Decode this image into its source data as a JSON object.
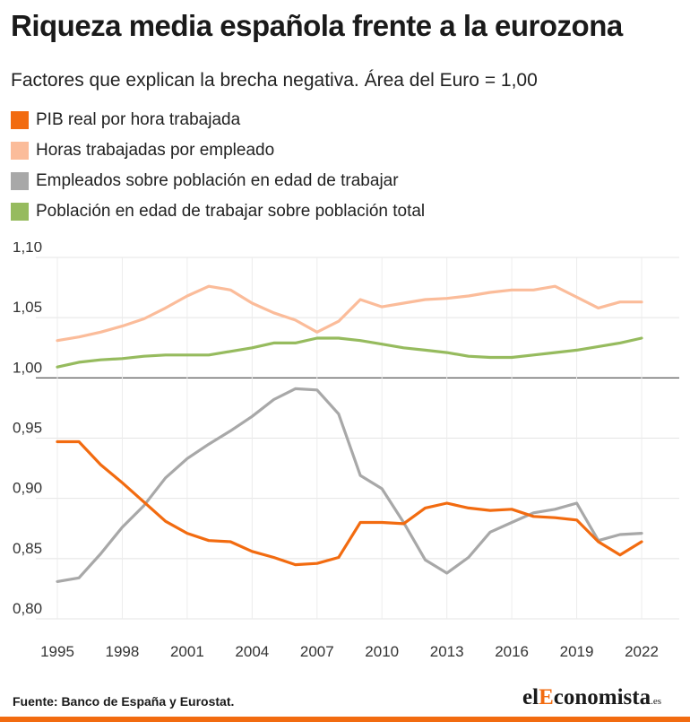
{
  "title": "Riqueza media española frente a la eurozona",
  "subtitle": "Factores que explican la brecha negativa. Área del Euro = 1,00",
  "footer": {
    "source": "Fuente: Banco de España y Eurostat.",
    "brand_pre": "el",
    "brand_accent": "E",
    "brand_mid": "conomista",
    "brand_suffix": ".es"
  },
  "colors": {
    "pib": "#f26b10",
    "horas": "#fbbc9a",
    "empleados": "#a8a8a8",
    "poblacion": "#96bb5e",
    "brand_accent": "#f26b10"
  },
  "chart_data": {
    "type": "line",
    "title": "Riqueza media española frente a la eurozona",
    "subtitle": "Factores que explican la brecha negativa. Área del Euro = 1,00",
    "x": [
      1995,
      1996,
      1997,
      1998,
      1999,
      2000,
      2001,
      2002,
      2003,
      2004,
      2005,
      2006,
      2007,
      2008,
      2009,
      2010,
      2011,
      2012,
      2013,
      2014,
      2015,
      2016,
      2017,
      2018,
      2019,
      2020,
      2021,
      2022
    ],
    "x_ticks": [
      "1995",
      "1998",
      "2001",
      "2004",
      "2007",
      "2010",
      "2013",
      "2016",
      "2019",
      "2022"
    ],
    "y_ticks": [
      "1,10",
      "1,05",
      "1,00",
      "0,95",
      "0,90",
      "0,85",
      "0,80"
    ],
    "ylim": [
      0.8,
      1.1
    ],
    "reference_line": 1.0,
    "grid": true,
    "legend_position": "top",
    "series": [
      {
        "name": "PIB real por hora trabajada",
        "color": "#f26b10",
        "values": [
          0.947,
          0.947,
          0.928,
          0.913,
          0.897,
          0.881,
          0.871,
          0.865,
          0.864,
          0.856,
          0.851,
          0.845,
          0.846,
          0.851,
          0.88,
          0.88,
          0.879,
          0.892,
          0.896,
          0.892,
          0.89,
          0.891,
          0.885,
          0.884,
          0.882,
          0.864,
          0.853,
          0.864
        ]
      },
      {
        "name": "Horas trabajadas por empleado",
        "color": "#fbbc9a",
        "values": [
          1.031,
          1.034,
          1.038,
          1.043,
          1.049,
          1.058,
          1.068,
          1.076,
          1.073,
          1.062,
          1.054,
          1.048,
          1.038,
          1.047,
          1.065,
          1.059,
          1.062,
          1.065,
          1.066,
          1.068,
          1.071,
          1.073,
          1.073,
          1.076,
          1.067,
          1.058,
          1.063,
          1.063
        ]
      },
      {
        "name": "Empleados sobre población en edad de trabajar",
        "color": "#a8a8a8",
        "values": [
          0.831,
          0.834,
          0.854,
          0.876,
          0.894,
          0.917,
          0.933,
          0.945,
          0.956,
          0.968,
          0.982,
          0.991,
          0.99,
          0.97,
          0.919,
          0.908,
          0.88,
          0.849,
          0.838,
          0.851,
          0.872,
          0.88,
          0.888,
          0.891,
          0.896,
          0.865,
          0.87,
          0.871
        ]
      },
      {
        "name": "Población en edad de trabajar sobre población total",
        "color": "#96bb5e",
        "values": [
          1.009,
          1.013,
          1.015,
          1.016,
          1.018,
          1.019,
          1.019,
          1.019,
          1.022,
          1.025,
          1.029,
          1.029,
          1.033,
          1.033,
          1.031,
          1.028,
          1.025,
          1.023,
          1.021,
          1.018,
          1.017,
          1.017,
          1.019,
          1.021,
          1.023,
          1.026,
          1.029,
          1.033
        ]
      }
    ]
  }
}
